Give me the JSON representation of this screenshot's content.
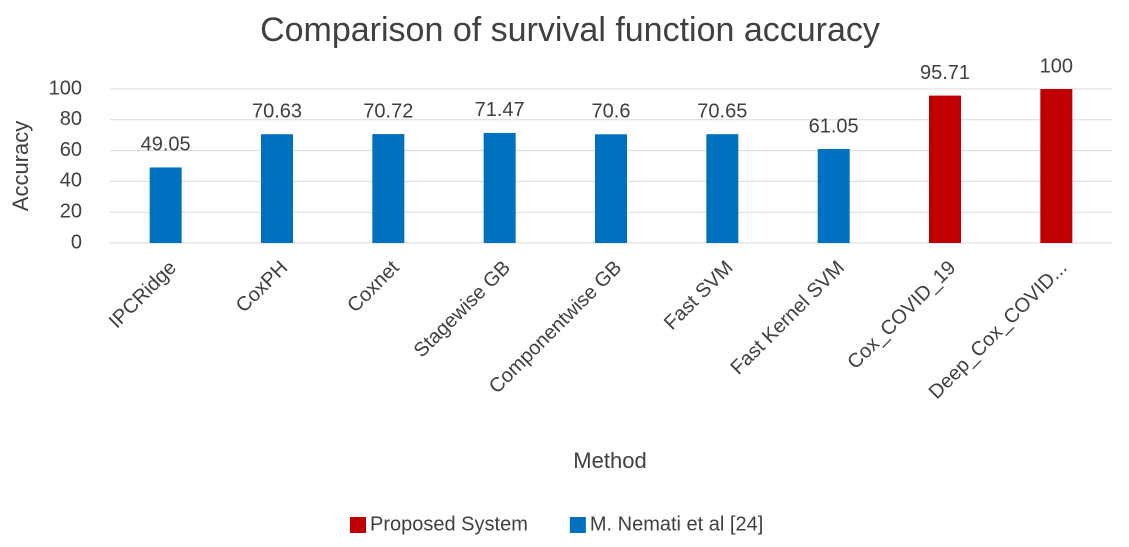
{
  "chart_data": {
    "type": "bar",
    "title": "Comparison of survival function accuracy",
    "x_label": "Method",
    "y_label": "Accuracy",
    "categories": [
      "IPCRidge",
      "CoxPH",
      "Coxnet",
      "Stagewise GB",
      "Componentwise GB",
      "Fast SVM",
      "Fast Kernel SVM",
      "Cox_COVID_19",
      "Deep_Cox_COVID..."
    ],
    "series": [
      {
        "name": "Proposed System",
        "color": "#c00000",
        "values": [
          null,
          null,
          null,
          null,
          null,
          null,
          null,
          95.71,
          100
        ]
      },
      {
        "name": "M. Nemati et al [24]",
        "color": "#0070c0",
        "values": [
          49.05,
          70.63,
          70.72,
          71.47,
          70.6,
          70.65,
          61.05,
          null,
          null
        ]
      }
    ],
    "ylim": [
      0,
      100
    ],
    "yticks": [
      0,
      20,
      40,
      60,
      80,
      100
    ],
    "grid": true,
    "legend": "bottom"
  }
}
